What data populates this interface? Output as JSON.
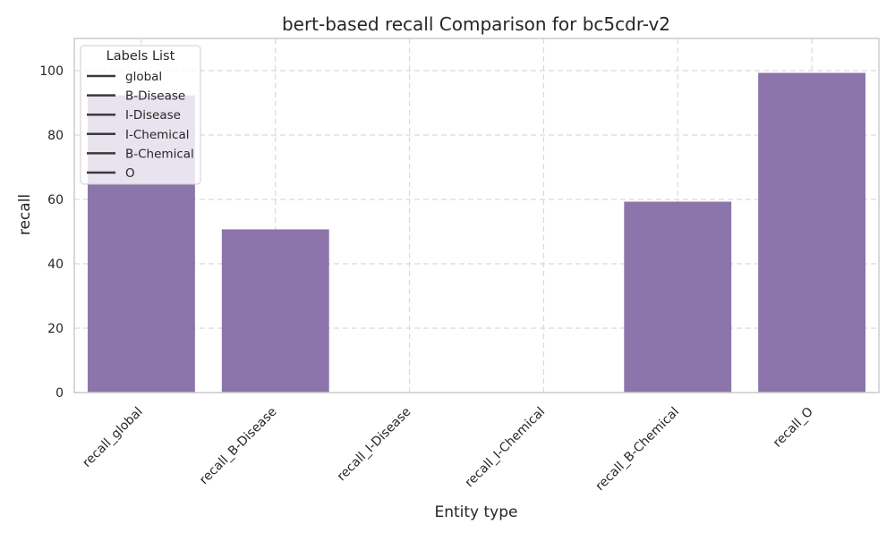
{
  "chart_data": {
    "type": "bar",
    "title": "bert-based  recall Comparison for bc5cdr-v2",
    "xlabel": "Entity type",
    "ylabel": "recall",
    "categories": [
      "recall_global",
      "recall_B-Disease",
      "recall_I-Disease",
      "recall_I-Chemical",
      "recall_B-Chemical",
      "recall_O"
    ],
    "values": [
      92.3,
      50.7,
      0,
      0,
      59.3,
      99.3
    ],
    "ylim": [
      0,
      110
    ],
    "yticks": [
      0,
      20,
      40,
      60,
      80,
      100
    ],
    "grid": true,
    "bar_color": "#8c75aa",
    "legend": {
      "title": "Labels List",
      "placement": "top-left",
      "entries": [
        "global",
        "B-Disease",
        "I-Disease",
        "I-Chemical",
        "B-Chemical",
        "O"
      ]
    }
  }
}
